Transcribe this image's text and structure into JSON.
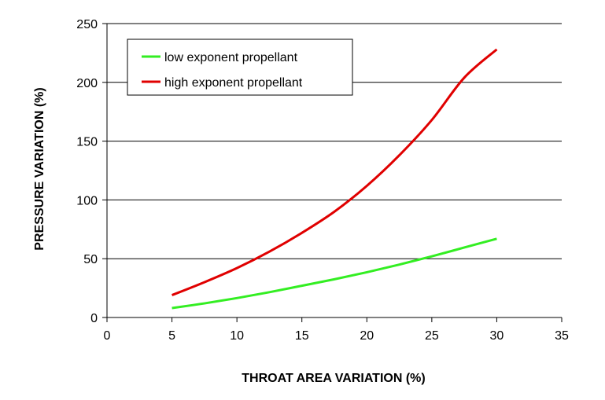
{
  "chart_data": {
    "type": "line",
    "title": "",
    "xlabel": "THROAT AREA VARIATION (%)",
    "ylabel": "PRESSURE VARIATION (%)",
    "xlim": [
      0,
      35
    ],
    "ylim": [
      0,
      250
    ],
    "x_ticks": [
      0,
      5,
      10,
      15,
      20,
      25,
      30,
      35
    ],
    "y_ticks": [
      0,
      50,
      100,
      150,
      200,
      250
    ],
    "grid": "horizontal major gridlines",
    "legend_position": "top-left",
    "series": [
      {
        "name": "low exponent propellant",
        "color": "#33ee22",
        "x": [
          5,
          7.5,
          10,
          12.5,
          15,
          17.5,
          20,
          22.5,
          25,
          27.5,
          30
        ],
        "y": [
          8,
          12,
          16.5,
          21.5,
          27,
          32.5,
          38.5,
          45,
          52,
          59.5,
          67
        ]
      },
      {
        "name": "high exponent propellant",
        "color": "#e00000",
        "x": [
          5,
          7.5,
          10,
          12.5,
          15,
          17.5,
          20,
          22.5,
          25,
          27.5,
          30
        ],
        "y": [
          19,
          30,
          42,
          56,
          72,
          90,
          112,
          138,
          168,
          204,
          228
        ]
      }
    ]
  }
}
